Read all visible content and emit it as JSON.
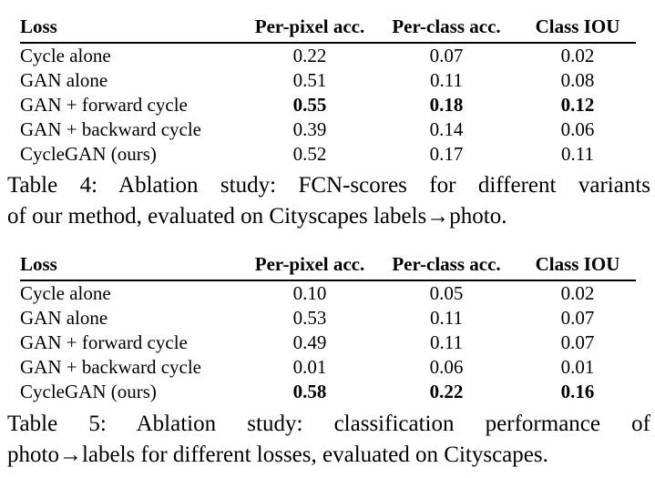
{
  "document": {
    "background_color": "#ffffff",
    "text_color": "#000000"
  },
  "tables": [
    {
      "id": "table-4",
      "headers": [
        "Loss",
        "Per-pixel acc.",
        "Per-class acc.",
        "Class IOU"
      ],
      "rows": [
        [
          "Cycle alone",
          "0.22",
          "0.07",
          "0.02"
        ],
        [
          "GAN alone",
          "0.51",
          "0.11",
          "0.08"
        ],
        [
          "GAN + forward cycle",
          "0.55",
          "0.18",
          "0.12"
        ],
        [
          "GAN + backward cycle",
          "0.39",
          "0.14",
          "0.06"
        ],
        [
          "CycleGAN (ours)",
          "0.52",
          "0.17",
          "0.11"
        ]
      ],
      "bold_row_index": 2,
      "caption": [
        "Table 4: Ablation study: FCN-scores for different variants",
        "of our method, evaluated on Cityscapes labels→photo."
      ]
    },
    {
      "id": "table-5",
      "headers": [
        "Loss",
        "Per-pixel acc.",
        "Per-class acc.",
        "Class IOU"
      ],
      "rows": [
        [
          "Cycle alone",
          "0.10",
          "0.05",
          "0.02"
        ],
        [
          "GAN alone",
          "0.53",
          "0.11",
          "0.07"
        ],
        [
          "GAN + forward cycle",
          "0.49",
          "0.11",
          "0.07"
        ],
        [
          "GAN + backward cycle",
          "0.01",
          "0.06",
          "0.01"
        ],
        [
          "CycleGAN (ours)",
          "0.58",
          "0.22",
          "0.16"
        ]
      ],
      "bold_row_index": 4,
      "caption": [
        "Table 5: Ablation study: classification performance of",
        "photo→labels for different losses, evaluated on Cityscapes."
      ]
    }
  ],
  "chart_data": [
    {
      "type": "table",
      "title": "Table 4: Ablation study: FCN-scores for different variants of our method, evaluated on Cityscapes labels→photo.",
      "categories": [
        "Cycle alone",
        "GAN alone",
        "GAN + forward cycle",
        "GAN + backward cycle",
        "CycleGAN (ours)"
      ],
      "series": [
        {
          "name": "Per-pixel acc.",
          "values": [
            0.22,
            0.51,
            0.55,
            0.39,
            0.52
          ]
        },
        {
          "name": "Per-class acc.",
          "values": [
            0.07,
            0.11,
            0.18,
            0.14,
            0.17
          ]
        },
        {
          "name": "Class IOU",
          "values": [
            0.02,
            0.08,
            0.12,
            0.06,
            0.11
          ]
        }
      ]
    },
    {
      "type": "table",
      "title": "Table 5: Ablation study: classification performance of photo→labels for different losses, evaluated on Cityscapes.",
      "categories": [
        "Cycle alone",
        "GAN alone",
        "GAN + forward cycle",
        "GAN + backward cycle",
        "CycleGAN (ours)"
      ],
      "series": [
        {
          "name": "Per-pixel acc.",
          "values": [
            0.1,
            0.53,
            0.49,
            0.01,
            0.58
          ]
        },
        {
          "name": "Per-class acc.",
          "values": [
            0.05,
            0.11,
            0.11,
            0.06,
            0.22
          ]
        },
        {
          "name": "Class IOU",
          "values": [
            0.02,
            0.07,
            0.07,
            0.01,
            0.16
          ]
        }
      ]
    }
  ]
}
